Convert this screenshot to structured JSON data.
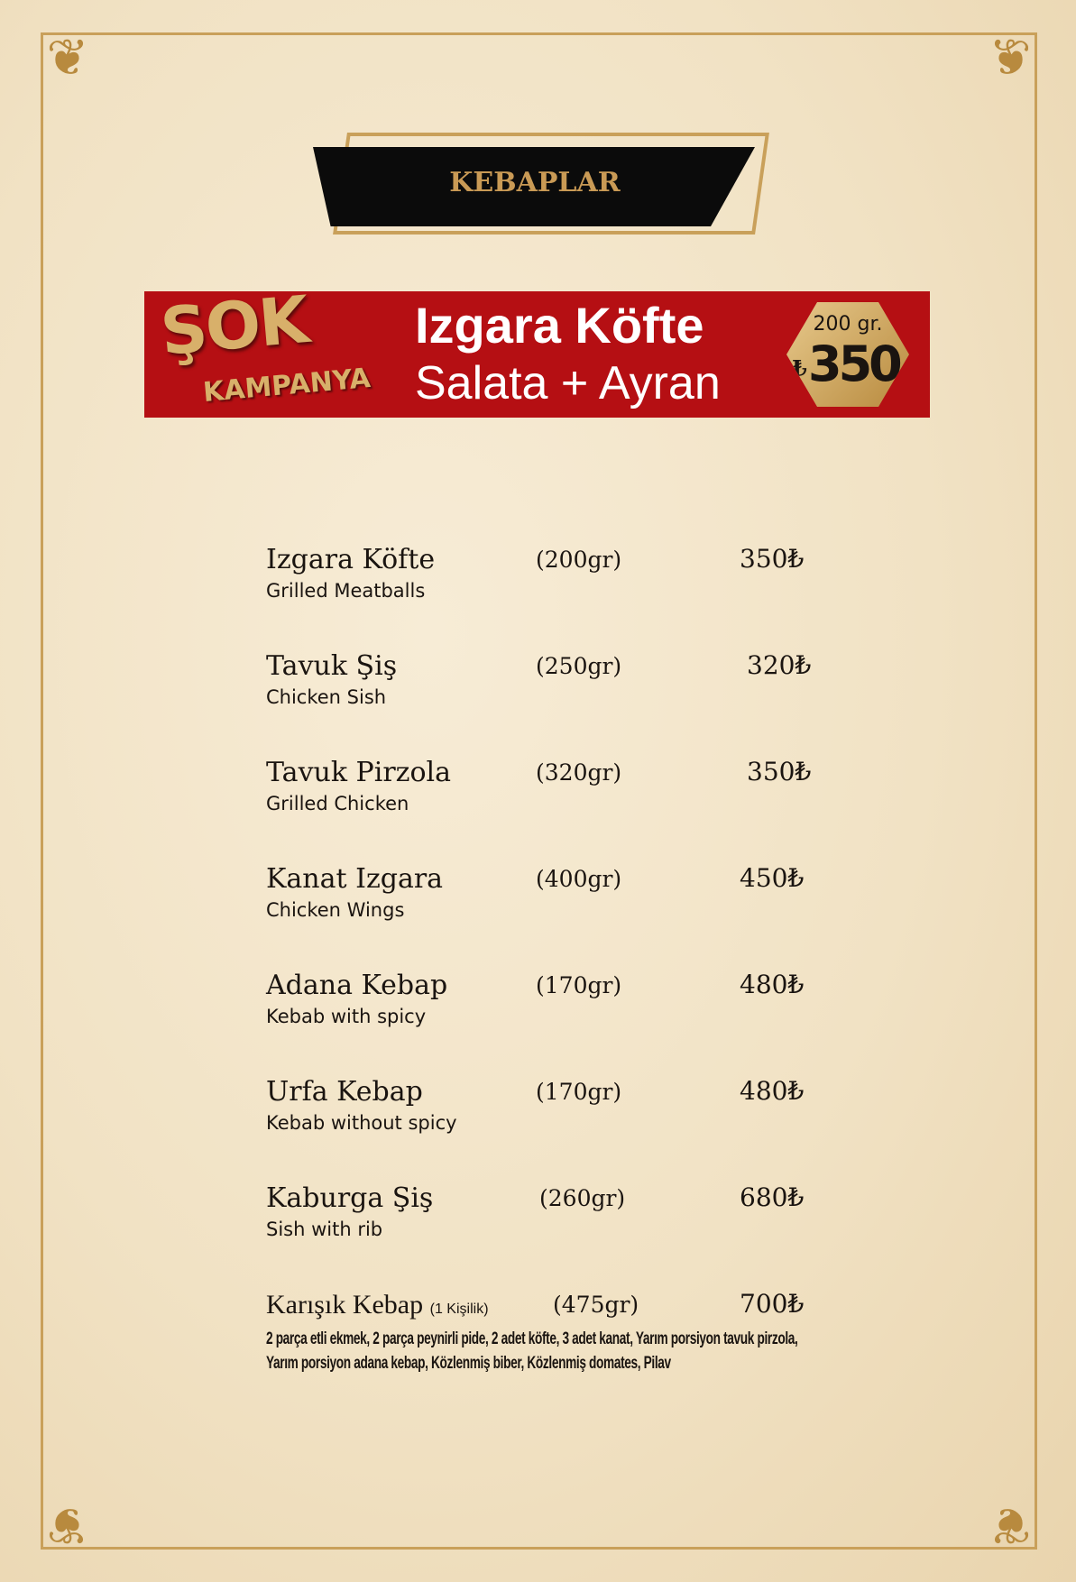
{
  "header": {
    "title": "KEBAPLAR"
  },
  "promo": {
    "brand_top": "ŞOK",
    "brand_bottom": "KAMPANYA",
    "line1": "Izgara Köfte",
    "line2": "Salata + Ayran",
    "badge_weight": "200 gr.",
    "badge_currency": "₺",
    "badge_price": "350",
    "colors": {
      "background": "#b50f13",
      "gold": "#d8b06a"
    }
  },
  "items": [
    {
      "name": "Izgara Köfte",
      "weight": "(200gr)",
      "price": "350₺",
      "subtitle": "Grilled Meatballs"
    },
    {
      "name": "Tavuk Şiş",
      "weight": "(250gr)",
      "price": "320₺",
      "subtitle": "Chicken Sish"
    },
    {
      "name": "Tavuk Pirzola",
      "weight": "(320gr)",
      "price": "350₺",
      "subtitle": "Grilled Chicken"
    },
    {
      "name": "Kanat Izgara",
      "weight": "(400gr)",
      "price": "450₺",
      "subtitle": "Chicken Wings"
    },
    {
      "name": "Adana Kebap",
      "weight": "(170gr)",
      "price": "480₺",
      "subtitle": "Kebab with spicy"
    },
    {
      "name": "Urfa Kebap",
      "weight": "(170gr)",
      "price": "480₺",
      "subtitle": "Kebab without spicy"
    },
    {
      "name": "Kaburga Şiş",
      "weight": "(260gr)",
      "price": "680₺",
      "subtitle": "Sish with rib"
    },
    {
      "name": "Karışık Kebap",
      "note": "(1 Kişilik)",
      "weight": "(475gr)",
      "price": "700₺",
      "description": [
        "2 parça etli ekmek, 2 parça peynirli pide, 2 adet köfte, 3 adet kanat, Yarım porsiyon tavuk pirzola,",
        "Yarım porsiyon adana kebap, Közlenmiş biber, Közlenmiş domates,  Pilav"
      ]
    }
  ]
}
